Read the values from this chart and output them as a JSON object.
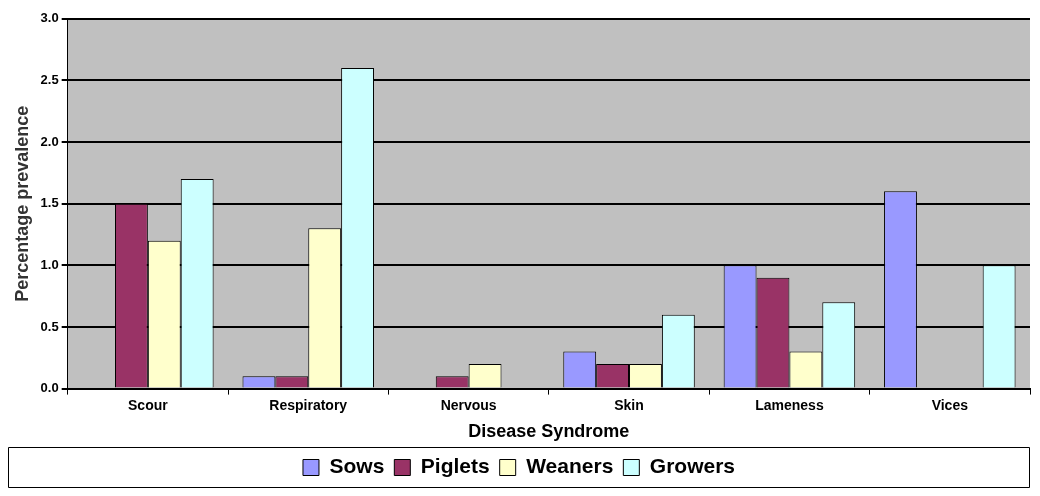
{
  "chart_data": {
    "type": "bar",
    "xlabel": "Disease Syndrome",
    "ylabel": "Percentage prevalence",
    "categories": [
      "Scour",
      "Respiratory",
      "Nervous",
      "Skin",
      "Lameness",
      "Vices"
    ],
    "series": [
      {
        "name": "Sows",
        "color": "#9999ff",
        "values": [
          0,
          0.1,
          0,
          0.3,
          1.0,
          1.6
        ]
      },
      {
        "name": "Piglets",
        "color": "#993366",
        "values": [
          1.5,
          0.1,
          0.1,
          0.2,
          0.9,
          0
        ]
      },
      {
        "name": "Weaners",
        "color": "#ffffcc",
        "values": [
          1.2,
          1.3,
          0.2,
          0.2,
          0.3,
          0
        ]
      },
      {
        "name": "Growers",
        "color": "#ccffff",
        "values": [
          1.7,
          2.6,
          0,
          0.6,
          0.7,
          1.0
        ]
      }
    ],
    "ylim": [
      0,
      3
    ],
    "yticks": [
      {
        "value": 0,
        "label": "0.0"
      },
      {
        "value": 0.5,
        "label": "0.5"
      },
      {
        "value": 1,
        "label": "1.0"
      },
      {
        "value": 1.5,
        "label": "1.5"
      },
      {
        "value": 2,
        "label": "2.0"
      },
      {
        "value": 2.5,
        "label": "2.5"
      },
      {
        "value": 3,
        "label": "3.0"
      }
    ],
    "grid": "y",
    "legend": "bottom"
  }
}
